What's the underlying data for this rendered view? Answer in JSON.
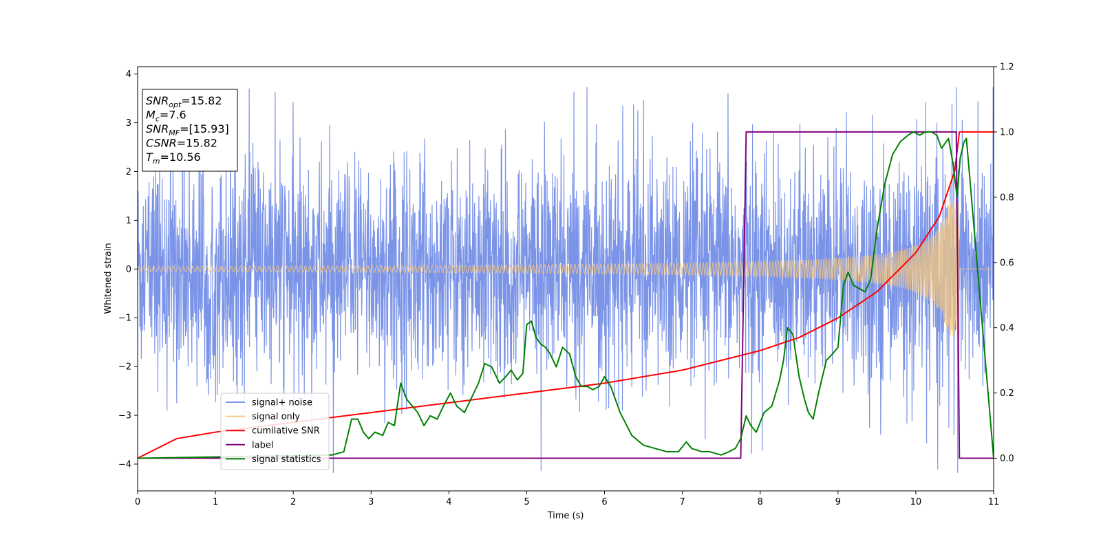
{
  "chart_data": {
    "type": "line",
    "xlabel": "Time (s)",
    "ylabel": "Whitened strain",
    "xlim": [
      0,
      11
    ],
    "ylim_left": [
      -4.55,
      4.15
    ],
    "ylim_right": [
      -0.1,
      1.2
    ],
    "x_ticks": [
      "0",
      "1",
      "2",
      "3",
      "4",
      "5",
      "6",
      "7",
      "8",
      "9",
      "10",
      "11"
    ],
    "y_ticks_left": [
      "−4",
      "−3",
      "−2",
      "−1",
      "0",
      "1",
      "2",
      "3",
      "4"
    ],
    "y_ticks_right": [
      "0.0",
      "0.2",
      "0.4",
      "0.6",
      "0.8",
      "1.0",
      "1.2"
    ],
    "grid": false,
    "legend_position": "lower-left",
    "colors": {
      "signal_noise": "#7b94e8",
      "signal_only": "#f5c77e",
      "cumulative_snr": "#ff0000",
      "label": "#800080",
      "signal_statistics": "#008000"
    },
    "series": [
      {
        "name": "signal+ noise",
        "axis": "left",
        "description_values": {
          "x_start": 0,
          "x_end": 11,
          "typical_amplitude": 1.5,
          "peak_max": 3.73,
          "peak_min": -4.18
        }
      },
      {
        "name": "signal only",
        "axis": "left",
        "description_values": {
          "x_start": 0,
          "x_end": 10.56,
          "amplitude_start": 0.06,
          "amplitude_end": 1.4
        }
      },
      {
        "name": "cumilative SNR",
        "axis": "right",
        "x": [
          0,
          0.5,
          1,
          2,
          3,
          4,
          5,
          6,
          7,
          7.5,
          8,
          8.5,
          9,
          9.5,
          10,
          10.3,
          10.5,
          10.56,
          11
        ],
        "y": [
          0.0,
          0.06,
          0.08,
          0.11,
          0.14,
          0.17,
          0.2,
          0.23,
          0.27,
          0.3,
          0.33,
          0.37,
          0.43,
          0.51,
          0.63,
          0.74,
          0.88,
          1.0,
          1.0
        ]
      },
      {
        "name": "label",
        "axis": "right",
        "x": [
          0,
          7.75,
          7.82,
          10.52,
          10.56,
          11
        ],
        "y": [
          0,
          0,
          1,
          1,
          0,
          0
        ]
      },
      {
        "name": "signal statistics",
        "axis": "right",
        "x": [
          0,
          2.5,
          2.65,
          2.75,
          2.83,
          2.9,
          2.97,
          3.05,
          3.15,
          3.22,
          3.3,
          3.38,
          3.46,
          3.53,
          3.6,
          3.68,
          3.76,
          3.85,
          3.93,
          4.02,
          4.1,
          4.2,
          4.3,
          4.38,
          4.46,
          4.55,
          4.65,
          4.73,
          4.8,
          4.88,
          4.95,
          5.0,
          5.06,
          5.12,
          5.18,
          5.24,
          5.3,
          5.38,
          5.46,
          5.55,
          5.63,
          5.7,
          5.78,
          5.85,
          5.93,
          6.0,
          6.08,
          6.2,
          6.35,
          6.5,
          6.65,
          6.8,
          6.95,
          7.05,
          7.12,
          7.25,
          7.35,
          7.5,
          7.6,
          7.68,
          7.75,
          7.82,
          7.88,
          7.95,
          8.05,
          8.1,
          8.15,
          8.2,
          8.25,
          8.3,
          8.35,
          8.42,
          8.5,
          8.57,
          8.62,
          8.68,
          8.75,
          8.85,
          8.93,
          9.0,
          9.07,
          9.13,
          9.2,
          9.27,
          9.35,
          9.42,
          9.5,
          9.6,
          9.7,
          9.8,
          9.9,
          9.97,
          10.05,
          10.12,
          10.2,
          10.27,
          10.33,
          10.42,
          10.48,
          10.53,
          10.57,
          10.62,
          10.65,
          11
        ],
        "y": [
          0.0,
          0.01,
          0.02,
          0.12,
          0.12,
          0.08,
          0.06,
          0.08,
          0.07,
          0.11,
          0.1,
          0.23,
          0.18,
          0.16,
          0.14,
          0.1,
          0.13,
          0.12,
          0.16,
          0.2,
          0.16,
          0.14,
          0.19,
          0.23,
          0.29,
          0.28,
          0.23,
          0.25,
          0.27,
          0.24,
          0.26,
          0.41,
          0.42,
          0.37,
          0.35,
          0.34,
          0.32,
          0.28,
          0.34,
          0.32,
          0.25,
          0.22,
          0.22,
          0.21,
          0.22,
          0.25,
          0.22,
          0.14,
          0.07,
          0.04,
          0.03,
          0.02,
          0.02,
          0.05,
          0.03,
          0.02,
          0.02,
          0.01,
          0.02,
          0.03,
          0.06,
          0.13,
          0.1,
          0.08,
          0.14,
          0.15,
          0.16,
          0.2,
          0.24,
          0.3,
          0.4,
          0.38,
          0.25,
          0.18,
          0.14,
          0.12,
          0.2,
          0.3,
          0.32,
          0.34,
          0.53,
          0.57,
          0.53,
          0.52,
          0.51,
          0.55,
          0.7,
          0.84,
          0.93,
          0.97,
          0.99,
          1.0,
          0.99,
          1.0,
          1.0,
          0.99,
          0.95,
          0.98,
          0.9,
          0.8,
          0.92,
          0.97,
          0.98,
          0.0
        ]
      }
    ],
    "annotation_box": [
      {
        "main": "SNR",
        "sub": "opt",
        "rest": "=15.82"
      },
      {
        "main": "M",
        "sub": "c",
        "rest": "=7.6"
      },
      {
        "main": "SNR",
        "sub": "MF",
        "rest": "=[15.93]"
      },
      {
        "main": "CSNR",
        "sub": "",
        "rest": "=15.82"
      },
      {
        "main": "T",
        "sub": "m",
        "rest": "=10.56"
      }
    ],
    "legend": [
      "signal+ noise",
      "signal only",
      "cumilative SNR",
      "label",
      "signal statistics"
    ]
  }
}
